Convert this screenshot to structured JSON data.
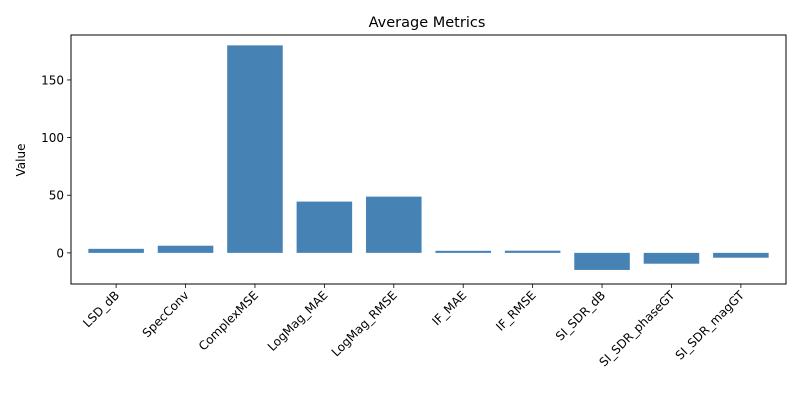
{
  "chart_data": {
    "type": "bar",
    "title": "Average Metrics",
    "xlabel": "",
    "ylabel": "Value",
    "categories": [
      "LSD_dB",
      "SpecConv",
      "ComplexMSE",
      "LogMag_MAE",
      "LogMag_RMSE",
      "IF_MAE",
      "IF_RMSE",
      "SI_SDR_dB",
      "SI_SDR_phaseGT",
      "SI_SDR_magGT"
    ],
    "values": [
      3.5,
      6.2,
      180.0,
      44.5,
      48.8,
      1.8,
      1.9,
      -14.8,
      -9.4,
      -4.2
    ],
    "ylim": [
      -27,
      189
    ],
    "yticks": [
      0,
      50,
      100,
      150
    ],
    "grid": false,
    "bar_color": "#4682b4"
  }
}
